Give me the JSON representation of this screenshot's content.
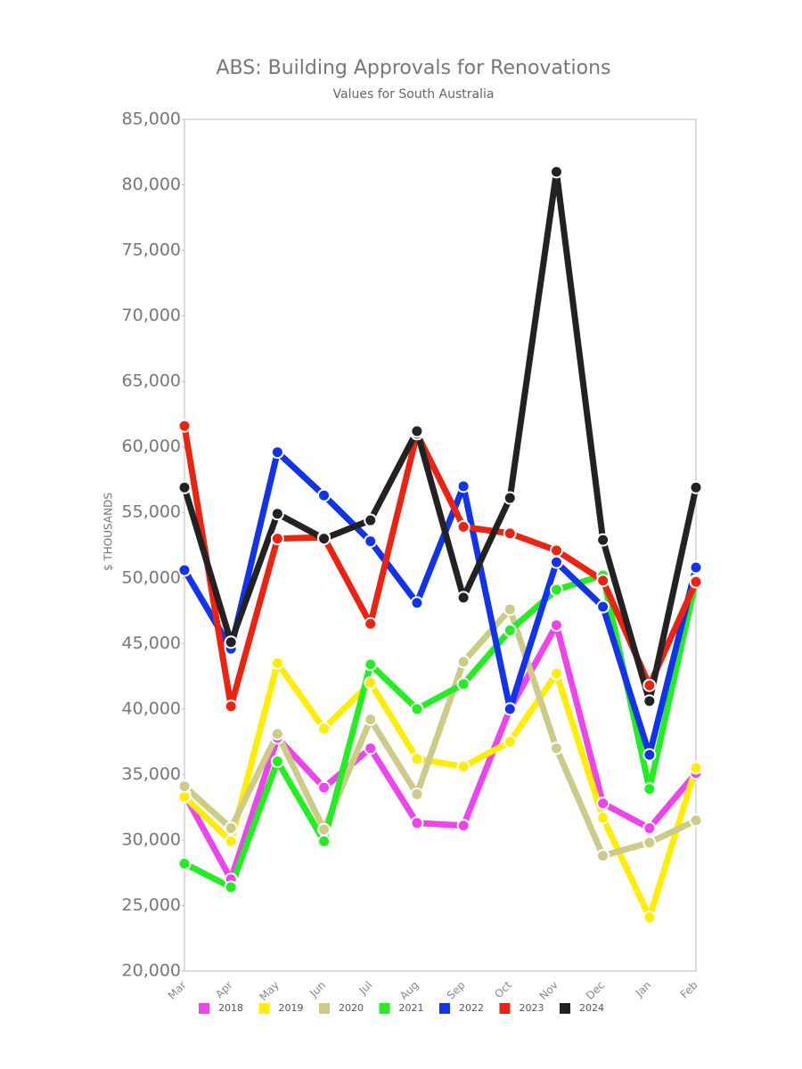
{
  "chart_data": {
    "type": "line",
    "title": "ABS: Building Approvals for Renovations",
    "subtitle": "Values for South Australia",
    "y_label": "$ THOUSANDS",
    "categories": [
      "Mar",
      "Apr",
      "May",
      "Jun",
      "Jul",
      "Aug",
      "Sep",
      "Oct",
      "Nov",
      "Dec",
      "Jan",
      "Feb"
    ],
    "ylim": [
      20000,
      85000
    ],
    "yticks": [
      {
        "value": 20000,
        "label": "20,000"
      },
      {
        "value": 25000,
        "label": "25,000"
      },
      {
        "value": 30000,
        "label": "30,000"
      },
      {
        "value": 35000,
        "label": "35,000"
      },
      {
        "value": 40000,
        "label": "40,000"
      },
      {
        "value": 45000,
        "label": "45,000"
      },
      {
        "value": 50000,
        "label": "50,000"
      },
      {
        "value": 55000,
        "label": "55,000"
      },
      {
        "value": 60000,
        "label": "60,000"
      },
      {
        "value": 65000,
        "label": "65,000"
      },
      {
        "value": 70000,
        "label": "70,000"
      },
      {
        "value": 75000,
        "label": "75,000"
      },
      {
        "value": 80000,
        "label": "80,000"
      },
      {
        "value": 85000,
        "label": "85,000"
      }
    ],
    "grid": false,
    "legend": "bottom",
    "series": [
      {
        "name": "2018",
        "color": "#ee44ee",
        "values": [
          33500,
          27000,
          37800,
          34000,
          37000,
          31300,
          31100,
          40000,
          46400,
          32800,
          30900,
          35100
        ]
      },
      {
        "name": "2019",
        "color": "#ffee00",
        "values": [
          33300,
          29900,
          43500,
          38500,
          42000,
          36200,
          35600,
          37500,
          42700,
          31700,
          24100,
          35500
        ]
      },
      {
        "name": "2020",
        "color": "#cccc88",
        "values": [
          34100,
          30900,
          38100,
          30800,
          39200,
          33500,
          43600,
          47600,
          37000,
          28800,
          29800,
          31500
        ]
      },
      {
        "name": "2021",
        "color": "#22ee22",
        "values": [
          28200,
          26400,
          36000,
          29900,
          43400,
          40000,
          41900,
          46000,
          49100,
          50200,
          33900,
          49800
        ]
      },
      {
        "name": "2022",
        "color": "#1133ee",
        "values": [
          50600,
          44600,
          59600,
          56300,
          52800,
          48100,
          57000,
          40000,
          51200,
          47800,
          36500,
          50800
        ]
      },
      {
        "name": "2023",
        "color": "#ee2211",
        "values": [
          61600,
          40200,
          53000,
          53100,
          46500,
          61000,
          53900,
          53400,
          52100,
          49800,
          41800,
          49700
        ]
      },
      {
        "name": "2024",
        "color": "#222222",
        "values": [
          56900,
          45100,
          54900,
          53000,
          54400,
          61200,
          48500,
          56100,
          81000,
          52900,
          40600,
          56900
        ]
      }
    ]
  }
}
